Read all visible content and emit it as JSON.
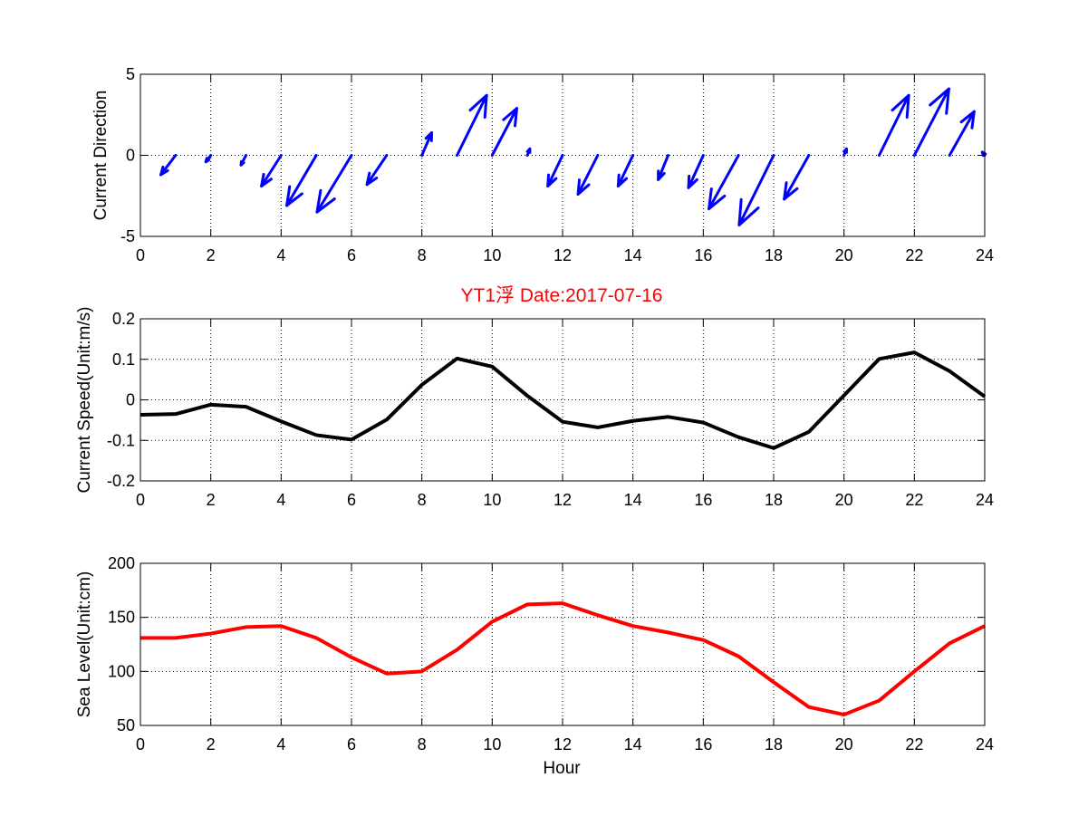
{
  "title": "YT1浮    Date:2017-07-16",
  "xlabel": "Hour",
  "colors": {
    "direction": "#0000ff",
    "speed": "#000000",
    "level": "#ff0000",
    "title": "#ff0000"
  },
  "chart_data": [
    {
      "type": "quiver",
      "ylabel": "Current Direction",
      "xlim": [
        0,
        24
      ],
      "ylim": [
        -5,
        5
      ],
      "xticks": [
        0,
        2,
        4,
        6,
        8,
        10,
        12,
        14,
        16,
        18,
        20,
        22,
        24
      ],
      "yticks": [
        -5,
        0,
        5
      ],
      "grid": true,
      "arrows": [
        {
          "x": 1,
          "u": -0.3,
          "v": -1.2
        },
        {
          "x": 2,
          "u": -0.1,
          "v": -0.4
        },
        {
          "x": 3,
          "u": -0.1,
          "v": -0.6
        },
        {
          "x": 4,
          "u": -0.4,
          "v": -1.9
        },
        {
          "x": 5,
          "u": -0.6,
          "v": -3.1
        },
        {
          "x": 6,
          "u": -0.7,
          "v": -3.5
        },
        {
          "x": 7,
          "u": -0.4,
          "v": -1.8
        },
        {
          "x": 8,
          "u": 0.2,
          "v": 1.4
        },
        {
          "x": 9,
          "u": 0.6,
          "v": 3.7
        },
        {
          "x": 10,
          "u": 0.5,
          "v": 2.9
        },
        {
          "x": 11,
          "u": 0.05,
          "v": 0.4
        },
        {
          "x": 12,
          "u": -0.3,
          "v": -1.9
        },
        {
          "x": 13,
          "u": -0.4,
          "v": -2.4
        },
        {
          "x": 14,
          "u": -0.3,
          "v": -1.9
        },
        {
          "x": 15,
          "u": -0.2,
          "v": -1.5
        },
        {
          "x": 16,
          "u": -0.3,
          "v": -2.0
        },
        {
          "x": 17,
          "u": -0.6,
          "v": -3.3
        },
        {
          "x": 18,
          "u": -0.7,
          "v": -4.3
        },
        {
          "x": 19,
          "u": -0.5,
          "v": -2.7
        },
        {
          "x": 20,
          "u": 0.05,
          "v": 0.4
        },
        {
          "x": 21,
          "u": 0.6,
          "v": 3.7
        },
        {
          "x": 22,
          "u": 0.7,
          "v": 4.1
        },
        {
          "x": 23,
          "u": 0.5,
          "v": 2.7
        },
        {
          "x": 24,
          "u": -0.05,
          "v": 0.2
        }
      ]
    },
    {
      "type": "line",
      "ylabel": "Current Speed(Unit:m/s)",
      "xlim": [
        0,
        24
      ],
      "ylim": [
        -0.2,
        0.2
      ],
      "xticks": [
        0,
        2,
        4,
        6,
        8,
        10,
        12,
        14,
        16,
        18,
        20,
        22,
        24
      ],
      "yticks": [
        -0.2,
        -0.1,
        0,
        0.1,
        0.2
      ],
      "ytick_labels": [
        "-0.2",
        "-0.1",
        "0",
        "0.1",
        "0.2"
      ],
      "grid": true,
      "x": [
        0,
        1,
        2,
        3,
        4,
        5,
        6,
        7,
        8,
        9,
        10,
        11,
        12,
        13,
        14,
        15,
        16,
        17,
        18,
        19,
        20,
        21,
        22,
        23,
        24
      ],
      "y": [
        -0.037,
        -0.035,
        -0.012,
        -0.017,
        -0.053,
        -0.087,
        -0.098,
        -0.049,
        0.037,
        0.102,
        0.082,
        0.01,
        -0.054,
        -0.068,
        -0.052,
        -0.042,
        -0.056,
        -0.092,
        -0.119,
        -0.079,
        0.011,
        0.101,
        0.117,
        0.071,
        0.008
      ]
    },
    {
      "type": "line",
      "ylabel": "Sea Level(Unit:cm)",
      "xlim": [
        0,
        24
      ],
      "ylim": [
        50,
        200
      ],
      "xticks": [
        0,
        2,
        4,
        6,
        8,
        10,
        12,
        14,
        16,
        18,
        20,
        22,
        24
      ],
      "yticks": [
        50,
        100,
        150,
        200
      ],
      "grid": true,
      "x": [
        0,
        1,
        2,
        3,
        4,
        5,
        6,
        7,
        8,
        9,
        10,
        11,
        12,
        13,
        14,
        15,
        16,
        17,
        18,
        19,
        20,
        21,
        22,
        23,
        24
      ],
      "y": [
        131,
        131,
        135,
        141,
        142,
        131,
        113,
        98,
        100,
        120,
        146,
        162,
        163,
        152,
        142,
        136,
        129,
        114,
        90,
        67,
        60,
        73,
        100,
        126,
        142
      ]
    }
  ]
}
